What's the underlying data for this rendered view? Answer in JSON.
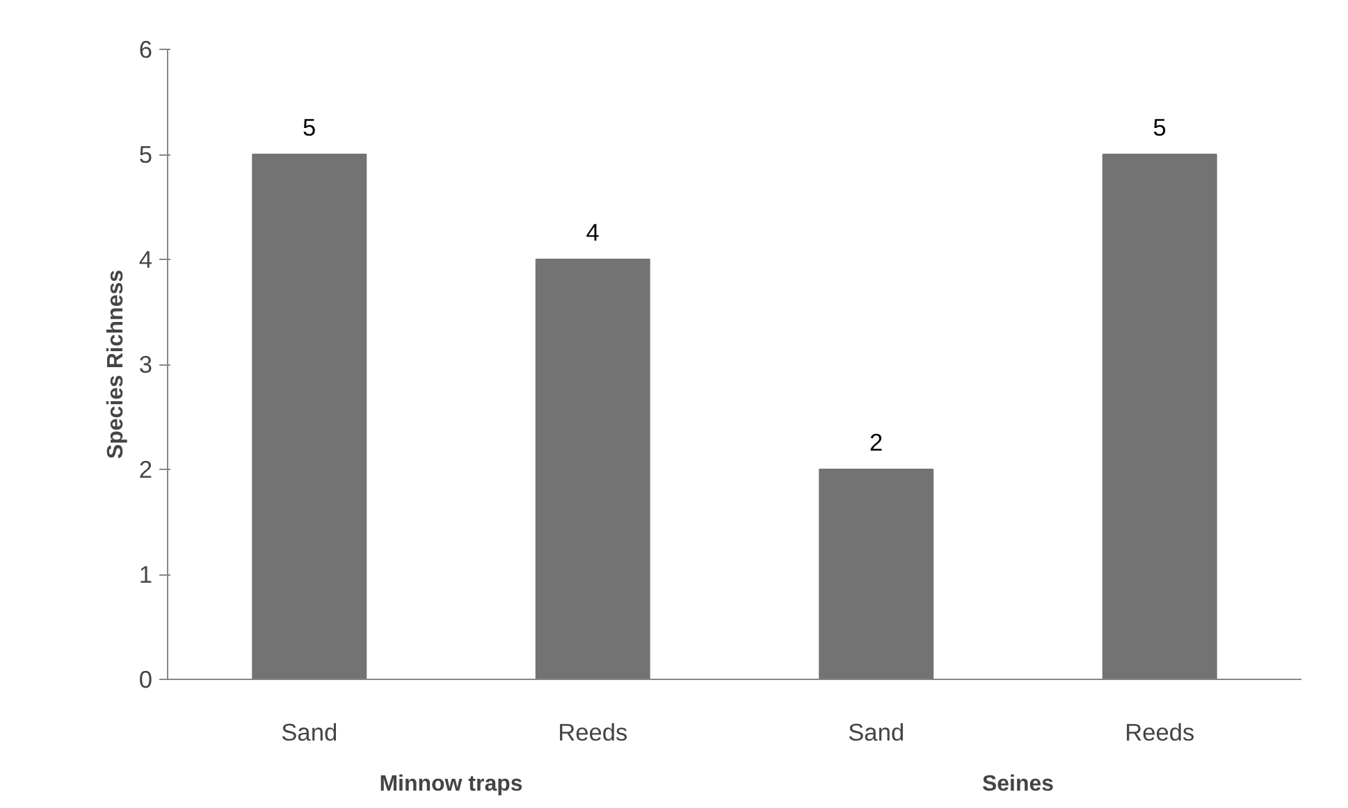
{
  "chart_data": {
    "type": "bar",
    "ylabel": "Species Richness",
    "categories": [
      "Sand",
      "Reeds",
      "Sand",
      "Reeds"
    ],
    "values": [
      5,
      4,
      2,
      5
    ],
    "color": "#737373",
    "ylim": [
      0,
      6
    ],
    "yticks": [
      0,
      1,
      2,
      3,
      4,
      5,
      6
    ],
    "grid": false,
    "data_labels": true,
    "annotations": [
      "Minnow traps",
      "Seines"
    ]
  }
}
